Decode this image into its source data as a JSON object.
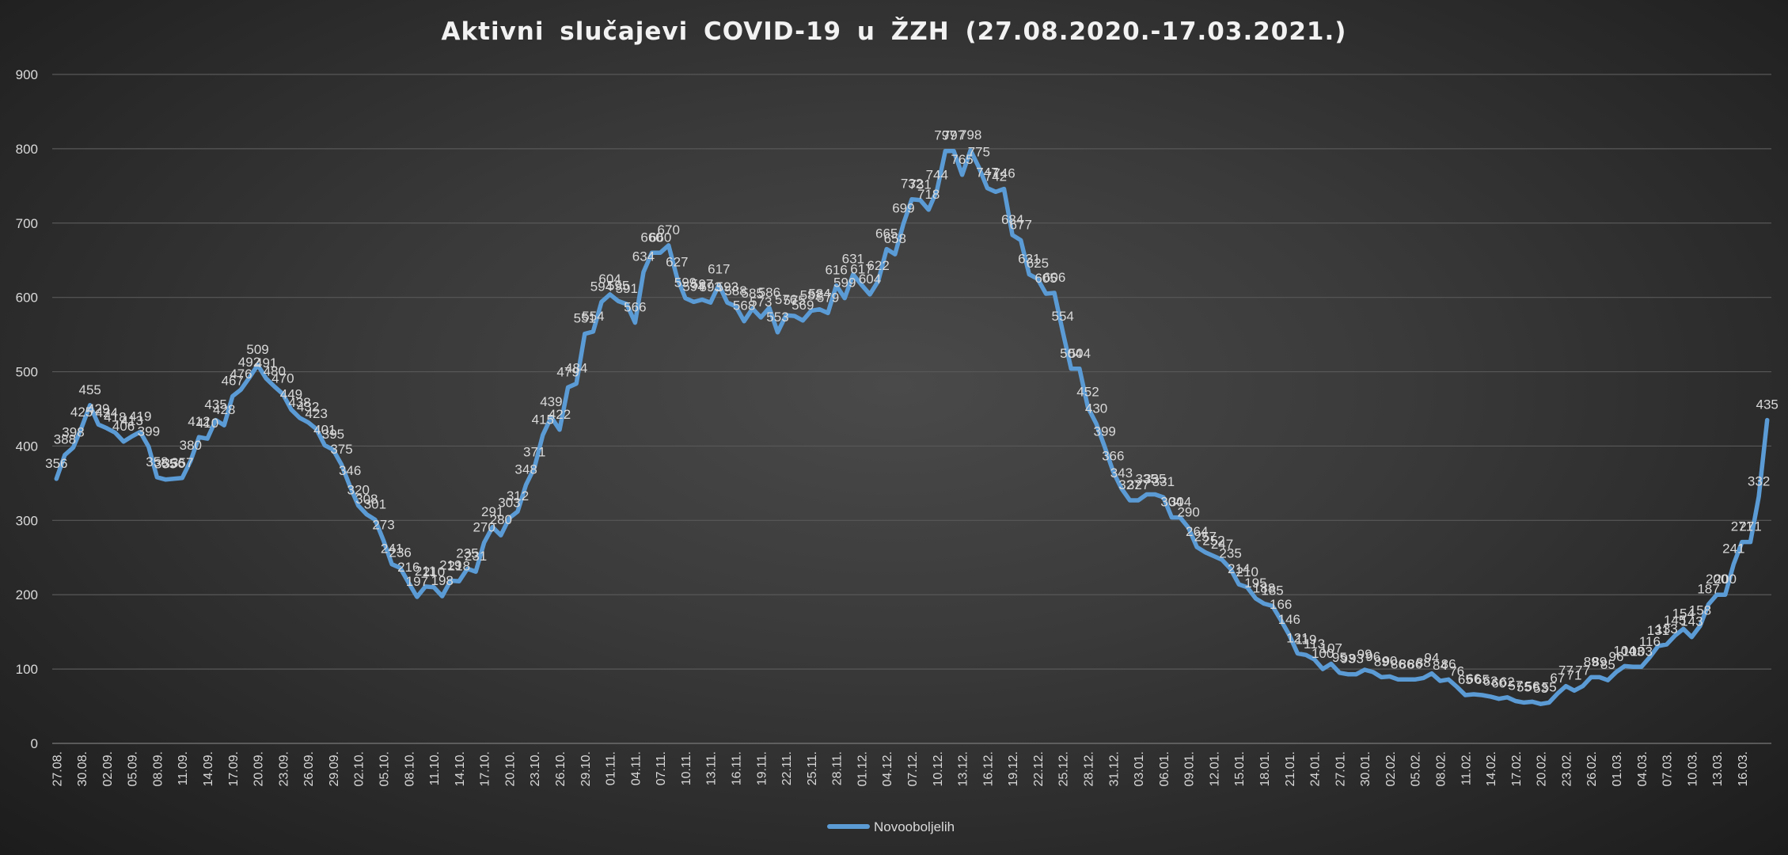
{
  "chart_data": {
    "type": "line",
    "title": "Aktivni  slučajevi  COVID-19  u  ŽZH  (27.08.2020.-17.03.2021.)",
    "xlabel": "",
    "ylabel": "",
    "ylim": [
      0,
      900
    ],
    "yticks": [
      "0",
      "100",
      "200",
      "300",
      "400",
      "500",
      "600",
      "700",
      "800",
      "900"
    ],
    "grid": true,
    "legend_position": "bottom-center",
    "series_color": "#5b9bd5",
    "series": [
      {
        "name": "Novooboljelih",
        "values": [
          356,
          388,
          398,
          425,
          455,
          429,
          424,
          418,
          406,
          413,
          419,
          399,
          358,
          355,
          356,
          357,
          380,
          412,
          410,
          435,
          428,
          467,
          476,
          492,
          509,
          491,
          480,
          470,
          449,
          438,
          432,
          423,
          401,
          395,
          375,
          346,
          320,
          308,
          301,
          273,
          241,
          236,
          216,
          197,
          211,
          210,
          198,
          219,
          218,
          235,
          231,
          270,
          291,
          280,
          303,
          312,
          348,
          371,
          415,
          439,
          422,
          479,
          484,
          551,
          554,
          594,
          604,
          595,
          591,
          566,
          634,
          660,
          660,
          670,
          627,
          599,
          594,
          597,
          593,
          617,
          593,
          588,
          568,
          585,
          573,
          586,
          553,
          576,
          575,
          569,
          582,
          584,
          579,
          616,
          599,
          631,
          617,
          604,
          622,
          665,
          658,
          699,
          732,
          731,
          718,
          744,
          797,
          797,
          765,
          798,
          775,
          747,
          742,
          746,
          684,
          677,
          631,
          625,
          605,
          606,
          554,
          504,
          504,
          452,
          430,
          399,
          366,
          343,
          327,
          327,
          335,
          335,
          331,
          304,
          304,
          290,
          264,
          257,
          252,
          247,
          235,
          214,
          210,
          195,
          188,
          185,
          166,
          146,
          121,
          119,
          113,
          100,
          107,
          95,
          93,
          93,
          99,
          96,
          89,
          90,
          86,
          86,
          86,
          88,
          94,
          84,
          86,
          76,
          65,
          66,
          65,
          63,
          60,
          62,
          57,
          55,
          56,
          53,
          55,
          67,
          77,
          71,
          77,
          89,
          89,
          85,
          96,
          104,
          103,
          103,
          116,
          131,
          133,
          145,
          154,
          143,
          158,
          187,
          200,
          200,
          241,
          271,
          271,
          332,
          435
        ]
      }
    ],
    "x_tick_labels": [
      "27.08.",
      "30.08.",
      "02.09.",
      "05.09.",
      "08.09.",
      "11.09.",
      "14.09.",
      "17.09.",
      "20.09.",
      "23.09.",
      "26.09.",
      "29.09.",
      "02.10.",
      "05.10.",
      "08.10.",
      "11.10.",
      "14.10.",
      "17.10.",
      "20.10.",
      "23.10.",
      "26.10.",
      "29.10.",
      "01.11.",
      "04.11.",
      "07.11.",
      "10.11.",
      "13.11.",
      "16.11.",
      "19.11.",
      "22.11.",
      "25.11.",
      "28.11.",
      "01.12.",
      "04.12.",
      "07.12.",
      "10.12.",
      "13.12.",
      "16.12.",
      "19.12.",
      "22.12.",
      "25.12.",
      "28.12.",
      "31.12.",
      "03.01.",
      "06.01.",
      "09.01.",
      "12.01.",
      "15.01.",
      "18.01.",
      "21.01.",
      "24.01.",
      "27.01.",
      "30.01.",
      "02.02.",
      "05.02.",
      "08.02.",
      "11.02.",
      "14.02.",
      "17.02.",
      "20.02.",
      "23.02.",
      "26.02.",
      "01.03.",
      "04.03.",
      "07.03.",
      "10.03.",
      "13.03.",
      "16.03."
    ]
  }
}
